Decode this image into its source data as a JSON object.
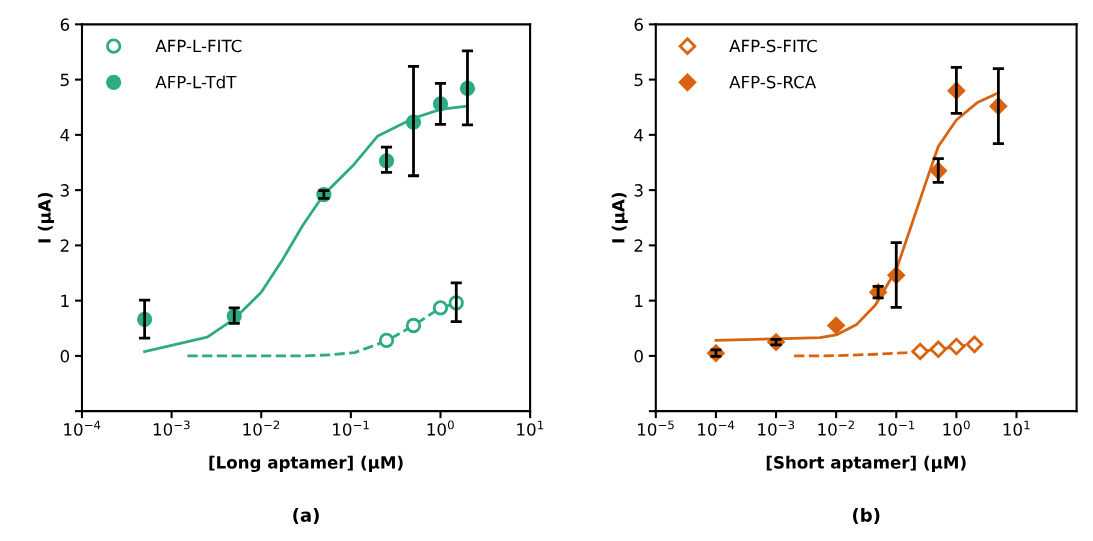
{
  "chart_data": [
    {
      "type": "scatter",
      "xlabel": "[Long aptamer] (µM)",
      "ylabel": "I (µA)",
      "annotations": [
        "(a)"
      ],
      "log": "x",
      "grid": false,
      "legend": "top left",
      "xlim": [
        0.0001,
        10
      ],
      "xticks": [
        {
          "value": 0.0001,
          "label": "10$^{−4}$"
        },
        {
          "value": 0.001,
          "label": "10$^{−3}$"
        },
        {
          "value": 0.01,
          "label": "10$^{−2}$"
        },
        {
          "value": 0.1,
          "label": "10$^{−1}$"
        },
        {
          "value": 1,
          "label": "10$^{0}$"
        },
        {
          "value": 10,
          "label": "10$^{1}$"
        }
      ],
      "ylim": [
        -1,
        6
      ],
      "yticks": [
        {
          "value": -1,
          "label": null
        },
        0,
        1,
        2,
        3,
        4,
        5,
        6
      ],
      "series": [
        {
          "type": "line",
          "color": "#2eaa85",
          "line_style": "dashed",
          "marker": "none",
          "x": [
            0.0015,
            0.01,
            0.03,
            0.06,
            0.11,
            0.25,
            0.5,
            1,
            1.5
          ],
          "values": [
            0,
            0,
            0,
            0.02,
            0.06,
            0.27,
            0.55,
            0.87,
            0.95
          ]
        },
        {
          "type": "line",
          "color": "#2eaa85",
          "line_style": "solid",
          "marker": "none",
          "x": [
            0.0005,
            0.0025,
            0.005,
            0.01,
            0.017,
            0.029,
            0.05,
            0.105,
            0.2,
            0.5,
            1,
            2
          ],
          "values": [
            0.08,
            0.34,
            0.67,
            1.15,
            1.72,
            2.36,
            2.92,
            3.44,
            3.98,
            4.3,
            4.46,
            4.52
          ]
        },
        {
          "type": "scatter",
          "name": "AFP-L-FITC",
          "color": "#2eaa85",
          "marker": "circle",
          "colors": [
            "#ffffff",
            "#ffffff",
            "#ffffff",
            "#ffffff"
          ],
          "x": [
            0.25,
            0.5,
            1,
            1.5
          ],
          "values": [
            0.28,
            0.55,
            0.87,
            0.96
          ],
          "errors": [
            null,
            null,
            null,
            [
              0.62,
              1.32
            ]
          ]
        },
        {
          "type": "scatter",
          "name": "AFP-L-TdT",
          "color": "#2eaa85",
          "marker": "circle",
          "x": [
            0.0005,
            0.005,
            0.05,
            0.25,
            0.5,
            1,
            2
          ],
          "values": [
            0.66,
            0.72,
            2.92,
            3.53,
            4.23,
            4.56,
            4.84
          ],
          "errors": [
            [
              0.32,
              1.01
            ],
            [
              0.59,
              0.87
            ],
            [
              2.85,
              2.99
            ],
            [
              3.32,
              3.78
            ],
            [
              3.26,
              5.24
            ],
            [
              4.19,
              4.93
            ],
            [
              4.18,
              5.52
            ]
          ]
        }
      ]
    },
    {
      "type": "scatter",
      "xlabel": "[Short aptamer] (µM)",
      "ylabel": "I (µA)",
      "annotations": [
        "(b)"
      ],
      "log": "x",
      "grid": false,
      "legend": "top left",
      "xlim": [
        1e-05,
        100
      ],
      "xticks": [
        {
          "value": 1e-05,
          "label": "10$^{−5}$"
        },
        {
          "value": 0.0001,
          "label": "10$^{−4}$"
        },
        {
          "value": 0.001,
          "label": "10$^{−3}$"
        },
        {
          "value": 0.01,
          "label": "10$^{−2}$"
        },
        {
          "value": 0.1,
          "label": "10$^{−1}$"
        },
        {
          "value": 1,
          "label": "10$^{0}$"
        },
        {
          "value": 10,
          "label": "10$^{1}$"
        }
      ],
      "ylim": [
        -1,
        6
      ],
      "yticks": [
        {
          "value": -1,
          "label": null
        },
        0,
        1,
        2,
        3,
        4,
        5,
        6
      ],
      "series": [
        {
          "type": "line",
          "color": "#d9630f",
          "line_style": "dashed",
          "marker": "none",
          "x": [
            0.002,
            0.006,
            0.014,
            0.045,
            0.15,
            0.25,
            0.5,
            1,
            2
          ],
          "values": [
            0,
            0,
            0.01,
            0.03,
            0.06,
            0.08,
            0.12,
            0.17,
            0.21
          ]
        },
        {
          "type": "line",
          "color": "#d9630f",
          "line_style": "solid",
          "marker": "none",
          "x": [
            0.0001,
            0.001,
            0.0054,
            0.01,
            0.022,
            0.045,
            0.1,
            0.166,
            0.3,
            0.5,
            1,
            2.2,
            5
          ],
          "values": [
            0.28,
            0.31,
            0.33,
            0.38,
            0.57,
            0.92,
            1.56,
            2.26,
            3.09,
            3.79,
            4.27,
            4.58,
            4.76
          ]
        },
        {
          "type": "scatter",
          "name": "AFP-S-FITC",
          "color": "#d9630f",
          "marker": "diamond",
          "colors": [
            "#ffffff",
            "#ffffff",
            "#ffffff",
            "#ffffff"
          ],
          "x": [
            0.25,
            0.5,
            1,
            2
          ],
          "values": [
            0.08,
            0.12,
            0.17,
            0.21
          ]
        },
        {
          "type": "scatter",
          "name": "AFP-S-RCA",
          "color": "#d9630f",
          "marker": "diamond",
          "x": [
            0.0001,
            0.001,
            0.01,
            0.05,
            0.1,
            0.5,
            1,
            5
          ],
          "values": [
            0.05,
            0.25,
            0.55,
            1.15,
            1.46,
            3.35,
            4.8,
            4.52
          ],
          "errors": [
            [
              -0.01,
              0.11
            ],
            [
              0.2,
              0.3
            ],
            null,
            [
              1.05,
              1.26
            ],
            [
              0.88,
              2.05
            ],
            [
              3.14,
              3.57
            ],
            [
              4.39,
              5.22
            ],
            [
              3.84,
              5.2
            ]
          ]
        }
      ]
    }
  ]
}
